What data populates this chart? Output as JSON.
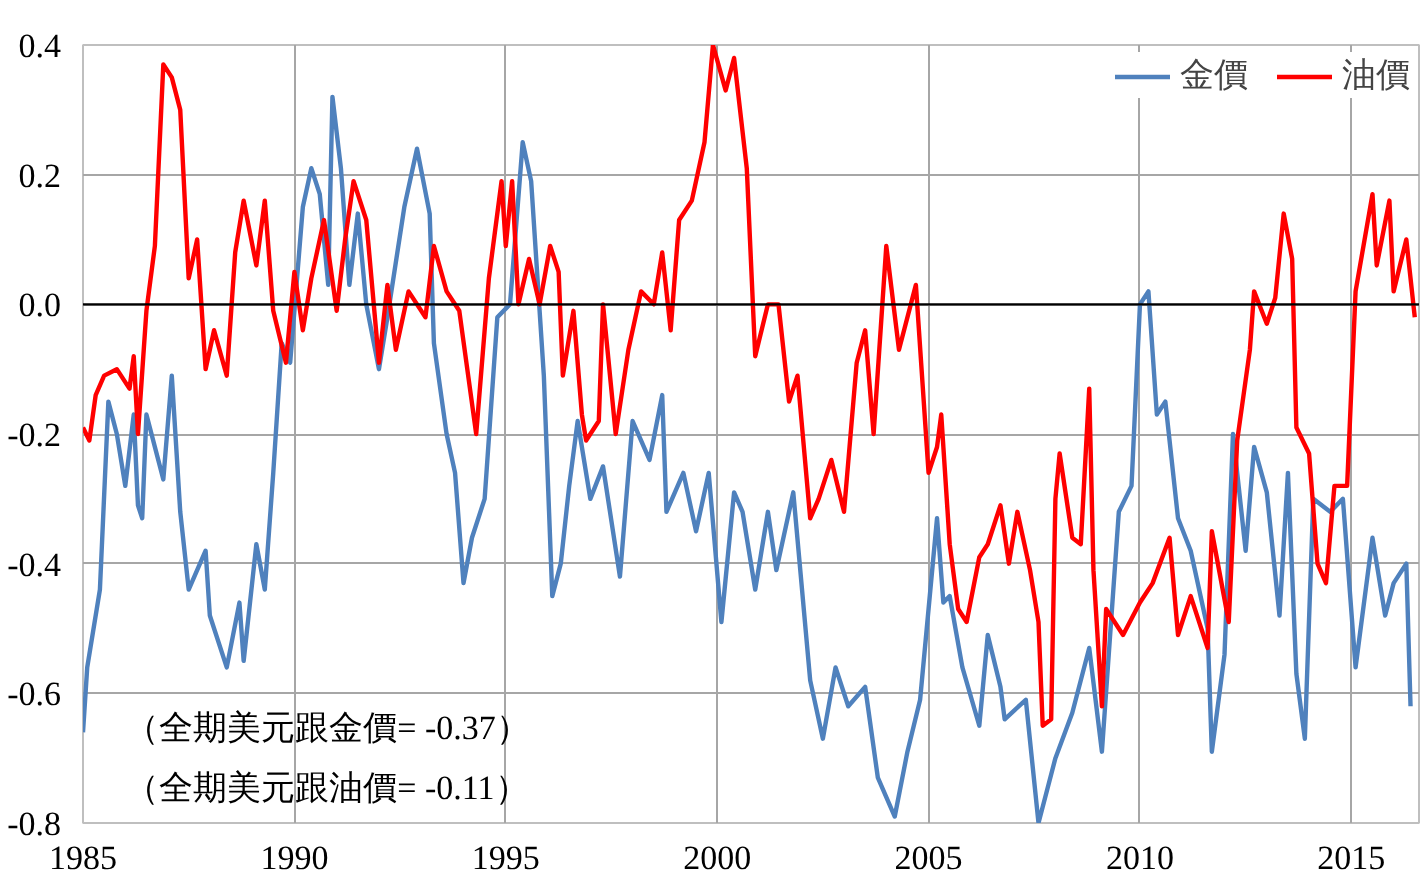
{
  "chart_data": {
    "type": "line",
    "xlim": [
      1985,
      2016.6
    ],
    "xticks": [
      1985,
      1990,
      1995,
      2000,
      2005,
      2010,
      2015
    ],
    "ylim": [
      -0.8,
      0.4
    ],
    "yticks": [
      {
        "value": -0.8,
        "label": "-0.8"
      },
      {
        "value": -0.6,
        "label": "-0.6"
      },
      {
        "value": -0.4,
        "label": "-0.4"
      },
      {
        "value": -0.2,
        "label": "-0.2"
      },
      {
        "value": 0.0,
        "label": "0.0"
      },
      {
        "value": 0.2,
        "label": "0.2"
      },
      0.4
    ],
    "grid": true,
    "legend": "top right",
    "ref_lines": [
      {
        "axis": "y",
        "value": 0,
        "color": "#000000"
      }
    ],
    "annotations": [
      "（全期美元跟金價= -0.37）",
      "（全期美元跟油價= -0.11）"
    ],
    "series": [
      {
        "name": "金價",
        "color": "#4f81bd",
        "x": [
          1985.0,
          1985.1,
          1985.4,
          1985.6,
          1985.8,
          1986.0,
          1986.2,
          1986.3,
          1986.4,
          1986.5,
          1986.9,
          1987.1,
          1987.3,
          1987.5,
          1987.9,
          1988.0,
          1988.4,
          1988.7,
          1988.8,
          1989.1,
          1989.3,
          1989.5,
          1989.7,
          1989.9,
          1990.2,
          1990.4,
          1990.6,
          1990.8,
          1990.9,
          1991.1,
          1991.3,
          1991.5,
          1991.7,
          1992.0,
          1992.2,
          1992.6,
          1992.9,
          1993.2,
          1993.3,
          1993.6,
          1993.8,
          1994.0,
          1994.2,
          1994.5,
          1994.8,
          1995.1,
          1995.4,
          1995.6,
          1995.9,
          1996.1,
          1996.3,
          1996.5,
          1996.7,
          1997.0,
          1997.3,
          1997.7,
          1998.0,
          1998.4,
          1998.7,
          1998.8,
          1999.2,
          1999.5,
          1999.8,
          2000.1,
          2000.4,
          2000.6,
          2000.9,
          2001.2,
          2001.4,
          2001.8,
          2002.2,
          2002.5,
          2002.8,
          2003.1,
          2003.5,
          2003.8,
          2004.2,
          2004.5,
          2004.8,
          2005.2,
          2005.35,
          2005.5,
          2005.8,
          2006.2,
          2006.4,
          2006.7,
          2006.8,
          2007.3,
          2007.6,
          2008.0,
          2008.4,
          2008.8,
          2009.1,
          2009.5,
          2009.8,
          2010.0,
          2010.2,
          2010.4,
          2010.6,
          2010.9,
          2011.2,
          2011.6,
          2011.7,
          2012.0,
          2012.2,
          2012.5,
          2012.7,
          2013.0,
          2013.3,
          2013.5,
          2013.7,
          2013.9,
          2014.1,
          2014.5,
          2014.8,
          2015.1,
          2015.5,
          2015.8,
          2016.0,
          2016.3,
          2016.4
        ],
        "values": [
          -0.66,
          -0.56,
          -0.44,
          -0.15,
          -0.2,
          -0.28,
          -0.17,
          -0.31,
          -0.33,
          -0.17,
          -0.27,
          -0.11,
          -0.32,
          -0.44,
          -0.38,
          -0.48,
          -0.56,
          -0.46,
          -0.55,
          -0.37,
          -0.44,
          -0.26,
          -0.06,
          -0.09,
          0.15,
          0.21,
          0.17,
          0.03,
          0.32,
          0.21,
          0.03,
          0.14,
          0.0,
          -0.1,
          -0.02,
          0.15,
          0.24,
          0.14,
          -0.06,
          -0.2,
          -0.26,
          -0.43,
          -0.36,
          -0.3,
          -0.02,
          0.0,
          0.25,
          0.19,
          -0.11,
          -0.45,
          -0.4,
          -0.28,
          -0.18,
          -0.3,
          -0.25,
          -0.42,
          -0.18,
          -0.24,
          -0.14,
          -0.32,
          -0.26,
          -0.35,
          -0.26,
          -0.49,
          -0.29,
          -0.32,
          -0.44,
          -0.32,
          -0.41,
          -0.29,
          -0.58,
          -0.67,
          -0.56,
          -0.62,
          -0.59,
          -0.73,
          -0.79,
          -0.69,
          -0.61,
          -0.33,
          -0.46,
          -0.45,
          -0.56,
          -0.65,
          -0.51,
          -0.59,
          -0.64,
          -0.61,
          -0.8,
          -0.7,
          -0.63,
          -0.53,
          -0.69,
          -0.32,
          -0.28,
          0.0,
          0.02,
          -0.17,
          -0.15,
          -0.33,
          -0.38,
          -0.5,
          -0.69,
          -0.54,
          -0.2,
          -0.38,
          -0.22,
          -0.29,
          -0.48,
          -0.26,
          -0.57,
          -0.67,
          -0.3,
          -0.32,
          -0.3,
          -0.56,
          -0.36,
          -0.48,
          -0.43,
          -0.4,
          -0.62
        ]
      },
      {
        "name": "油價",
        "color": "#ff0000",
        "x": [
          1985.0,
          1985.15,
          1985.3,
          1985.5,
          1985.8,
          1986.1,
          1986.2,
          1986.3,
          1986.5,
          1986.7,
          1986.9,
          1987.1,
          1987.3,
          1987.5,
          1987.7,
          1987.9,
          1988.1,
          1988.4,
          1988.6,
          1988.8,
          1989.1,
          1989.3,
          1989.5,
          1989.8,
          1990.0,
          1990.2,
          1990.4,
          1990.7,
          1991.0,
          1991.2,
          1991.4,
          1991.7,
          1992.0,
          1992.2,
          1992.4,
          1992.7,
          1993.1,
          1993.3,
          1993.6,
          1993.9,
          1994.3,
          1994.6,
          1994.9,
          1995.0,
          1995.15,
          1995.3,
          1995.55,
          1995.8,
          1996.05,
          1996.25,
          1996.35,
          1996.6,
          1996.8,
          1996.9,
          1997.2,
          1997.3,
          1997.6,
          1997.9,
          1998.2,
          1998.5,
          1998.7,
          1998.9,
          1999.1,
          1999.4,
          1999.7,
          1999.9,
          2000.2,
          2000.4,
          2000.7,
          2000.9,
          2001.2,
          2001.45,
          2001.7,
          2001.9,
          2002.2,
          2002.4,
          2002.7,
          2003.0,
          2003.3,
          2003.5,
          2003.7,
          2004.0,
          2004.3,
          2004.7,
          2005.0,
          2005.2,
          2005.3,
          2005.5,
          2005.7,
          2005.9,
          2006.2,
          2006.4,
          2006.7,
          2006.9,
          2007.1,
          2007.4,
          2007.6,
          2007.7,
          2007.9,
          2008.0,
          2008.1,
          2008.4,
          2008.6,
          2008.8,
          2008.9,
          2009.1,
          2009.2,
          2009.6,
          2010.0,
          2010.3,
          2010.7,
          2010.9,
          2011.2,
          2011.6,
          2011.7,
          2012.1,
          2012.3,
          2012.6,
          2012.7,
          2013.0,
          2013.2,
          2013.4,
          2013.6,
          2013.7,
          2014.0,
          2014.2,
          2014.4,
          2014.6,
          2014.9,
          2015.1,
          2015.5,
          2015.6,
          2015.9,
          2016.0,
          2016.3,
          2016.5
        ],
        "values": [
          -0.19,
          -0.21,
          -0.14,
          -0.11,
          -0.1,
          -0.13,
          -0.08,
          -0.2,
          -0.01,
          0.09,
          0.37,
          0.35,
          0.3,
          0.04,
          0.1,
          -0.1,
          -0.04,
          -0.11,
          0.08,
          0.16,
          0.06,
          0.16,
          -0.01,
          -0.09,
          0.05,
          -0.04,
          0.04,
          0.13,
          -0.01,
          0.1,
          0.19,
          0.13,
          -0.09,
          0.03,
          -0.07,
          0.02,
          -0.02,
          0.09,
          0.02,
          -0.01,
          -0.2,
          0.04,
          0.19,
          0.09,
          0.19,
          0.0,
          0.07,
          0.0,
          0.09,
          0.05,
          -0.11,
          -0.01,
          -0.17,
          -0.21,
          -0.18,
          0.0,
          -0.2,
          -0.07,
          0.02,
          0.0,
          0.08,
          -0.04,
          0.13,
          0.16,
          0.25,
          0.4,
          0.33,
          0.38,
          0.21,
          -0.08,
          0.0,
          0.0,
          -0.15,
          -0.11,
          -0.33,
          -0.3,
          -0.24,
          -0.32,
          -0.09,
          -0.04,
          -0.2,
          0.09,
          -0.07,
          0.03,
          -0.26,
          -0.22,
          -0.17,
          -0.37,
          -0.47,
          -0.49,
          -0.39,
          -0.37,
          -0.31,
          -0.4,
          -0.32,
          -0.41,
          -0.49,
          -0.65,
          -0.64,
          -0.3,
          -0.23,
          -0.36,
          -0.37,
          -0.13,
          -0.41,
          -0.62,
          -0.47,
          -0.51,
          -0.46,
          -0.43,
          -0.36,
          -0.51,
          -0.45,
          -0.53,
          -0.35,
          -0.49,
          -0.21,
          -0.07,
          0.02,
          -0.03,
          0.01,
          0.14,
          0.07,
          -0.19,
          -0.23,
          -0.4,
          -0.43,
          -0.28,
          -0.28,
          0.02,
          0.17,
          0.06,
          0.16,
          0.02,
          0.1,
          -0.02
        ]
      }
    ]
  }
}
